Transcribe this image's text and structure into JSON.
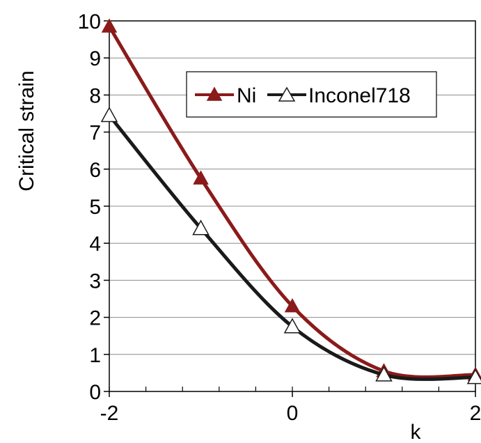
{
  "chart_data": {
    "type": "line",
    "title": "",
    "xlabel": "k",
    "ylabel": "Critical strain",
    "xlim": [
      -2,
      2
    ],
    "ylim": [
      0,
      10
    ],
    "x_ticks": [
      "-2",
      "0",
      "2"
    ],
    "y_ticks": [
      "0",
      "1",
      "2",
      "3",
      "4",
      "5",
      "6",
      "7",
      "8",
      "9",
      "10"
    ],
    "grid": "horizontal",
    "legend_position": "top-right",
    "x": [
      -2,
      -1,
      0,
      1,
      2
    ],
    "series": [
      {
        "name": "Ni",
        "marker": "filled-triangle",
        "color": "#8b1a1a",
        "values": [
          9.85,
          5.75,
          2.3,
          0.55,
          0.45
        ]
      },
      {
        "name": "Inconel718",
        "marker": "open-triangle",
        "color": "#1a1a1a",
        "values": [
          7.45,
          4.4,
          1.75,
          0.45,
          0.38
        ]
      }
    ]
  }
}
